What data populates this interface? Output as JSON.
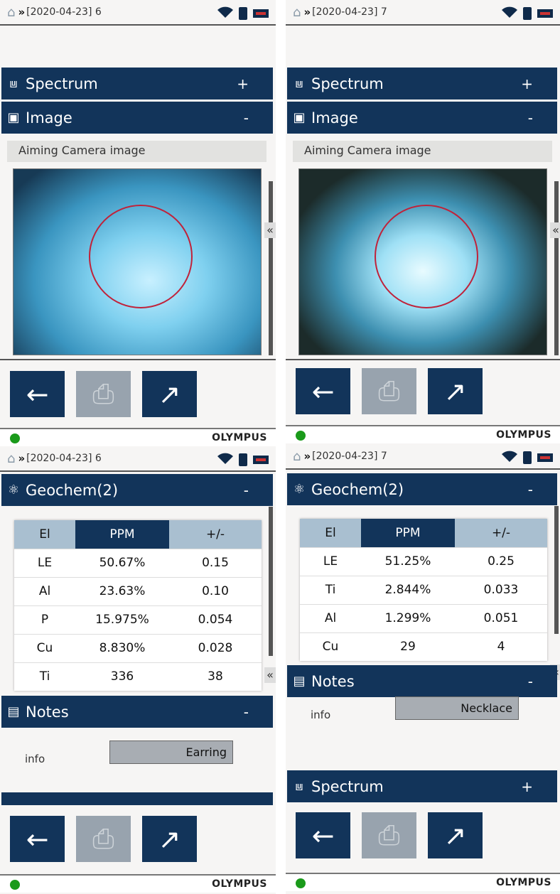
{
  "colors": {
    "header": "#12345a",
    "disabled": "#98a3ae",
    "status_ok": "#1a9a1a",
    "target_circle": "#c0223a"
  },
  "footer_brand": "OLYMPUS",
  "panels": [
    {
      "status_title": "[2020-04-23] 6",
      "sections": [
        {
          "icon": "spectrum-icon",
          "label": "Spectrum",
          "toggle": "+"
        },
        {
          "icon": "camera-icon",
          "label": "Image",
          "toggle": "-"
        }
      ],
      "image_label": "Aiming Camera image"
    },
    {
      "status_title": "[2020-04-23] 7",
      "sections": [
        {
          "icon": "spectrum-icon",
          "label": "Spectrum",
          "toggle": "+"
        },
        {
          "icon": "camera-icon",
          "label": "Image",
          "toggle": "-"
        }
      ],
      "image_label": "Aiming Camera image"
    },
    {
      "status_title": "[2020-04-23] 6",
      "geochem": {
        "label": "Geochem(2)",
        "toggle": "-"
      },
      "table": {
        "headers": [
          "El",
          "PPM",
          "+/-"
        ],
        "rows": [
          [
            "LE",
            "50.67%",
            "0.15"
          ],
          [
            "Al",
            "23.63%",
            "0.10"
          ],
          [
            "P",
            "15.975%",
            "0.054"
          ],
          [
            "Cu",
            "8.830%",
            "0.028"
          ],
          [
            "Ti",
            "336",
            "38"
          ]
        ]
      },
      "notes": {
        "label": "Notes",
        "toggle": "-",
        "info_label": "info",
        "info_value": "Earring"
      }
    },
    {
      "status_title": "[2020-04-23] 7",
      "geochem": {
        "label": "Geochem(2)",
        "toggle": "-"
      },
      "table": {
        "headers": [
          "El",
          "PPM",
          "+/-"
        ],
        "rows": [
          [
            "LE",
            "51.25%",
            "0.25"
          ],
          [
            "Ti",
            "2.844%",
            "0.033"
          ],
          [
            "Al",
            "1.299%",
            "0.051"
          ],
          [
            "Cu",
            "29",
            "4"
          ]
        ]
      },
      "notes": {
        "label": "Notes",
        "toggle": "-",
        "info_label": "info",
        "info_value": "Necklace"
      },
      "spectrum": {
        "label": "Spectrum",
        "toggle": "+"
      }
    }
  ]
}
